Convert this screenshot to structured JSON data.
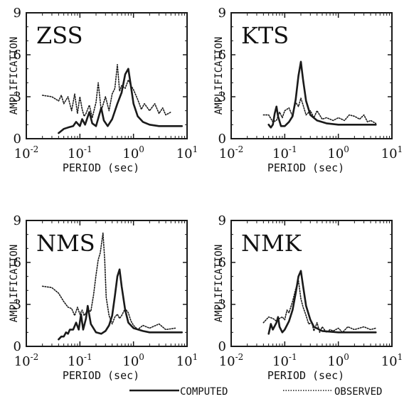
{
  "legend": {
    "computed_label": "COMPUTED",
    "observed_label": "OBSERVED",
    "position": "bottom-right"
  },
  "colors": {
    "ink": "#1a1a1a",
    "background": "#ffffff"
  },
  "chart_data": [
    {
      "type": "line",
      "title": "ZSS",
      "xlabel": "PERIOD (sec)",
      "ylabel": "AMPLIFICATION",
      "xscale": "log",
      "xlim": [
        0.01,
        10
      ],
      "ylim": [
        0,
        9
      ],
      "yticks": [
        0,
        3,
        6,
        9
      ],
      "xticks": [
        0.01,
        0.1,
        1,
        10
      ],
      "series": [
        {
          "name": "COMPUTED",
          "style": "solid",
          "points": [
            [
              0.04,
              0.4
            ],
            [
              0.05,
              0.7
            ],
            [
              0.06,
              0.8
            ],
            [
              0.075,
              0.9
            ],
            [
              0.085,
              1.2
            ],
            [
              0.1,
              0.9
            ],
            [
              0.11,
              1.4
            ],
            [
              0.125,
              1.0
            ],
            [
              0.15,
              1.9
            ],
            [
              0.17,
              1.1
            ],
            [
              0.2,
              0.9
            ],
            [
              0.25,
              2.2
            ],
            [
              0.28,
              1.3
            ],
            [
              0.33,
              0.9
            ],
            [
              0.4,
              1.4
            ],
            [
              0.5,
              2.5
            ],
            [
              0.6,
              3.3
            ],
            [
              0.7,
              4.6
            ],
            [
              0.8,
              5.0
            ],
            [
              0.9,
              3.7
            ],
            [
              1.0,
              2.5
            ],
            [
              1.2,
              1.6
            ],
            [
              1.5,
              1.2
            ],
            [
              2,
              1.0
            ],
            [
              3,
              0.9
            ],
            [
              5,
              0.9
            ],
            [
              8,
              0.9
            ]
          ]
        },
        {
          "name": "OBSERVED",
          "style": "dotted",
          "points": [
            [
              0.02,
              3.1
            ],
            [
              0.03,
              3.0
            ],
            [
              0.04,
              2.7
            ],
            [
              0.045,
              3.1
            ],
            [
              0.05,
              2.5
            ],
            [
              0.06,
              3.0
            ],
            [
              0.07,
              2.0
            ],
            [
              0.08,
              3.2
            ],
            [
              0.09,
              1.8
            ],
            [
              0.1,
              3.0
            ],
            [
              0.11,
              2.1
            ],
            [
              0.12,
              1.6
            ],
            [
              0.13,
              1.8
            ],
            [
              0.15,
              2.4
            ],
            [
              0.17,
              1.5
            ],
            [
              0.2,
              2.6
            ],
            [
              0.22,
              4.0
            ],
            [
              0.25,
              2.0
            ],
            [
              0.3,
              3.0
            ],
            [
              0.35,
              2.0
            ],
            [
              0.4,
              3.2
            ],
            [
              0.45,
              3.6
            ],
            [
              0.5,
              5.3
            ],
            [
              0.55,
              3.4
            ],
            [
              0.6,
              3.8
            ],
            [
              0.7,
              3.6
            ],
            [
              0.8,
              4.2
            ],
            [
              0.9,
              3.8
            ],
            [
              1.0,
              3.5
            ],
            [
              1.2,
              2.8
            ],
            [
              1.4,
              2.1
            ],
            [
              1.6,
              2.5
            ],
            [
              2,
              2.0
            ],
            [
              2.5,
              2.5
            ],
            [
              3,
              1.8
            ],
            [
              3.5,
              2.2
            ],
            [
              4,
              1.7
            ],
            [
              5,
              1.9
            ]
          ]
        }
      ]
    },
    {
      "type": "line",
      "title": "KTS",
      "xlabel": "PERIOD (sec)",
      "ylabel": "AMPLIFICATION",
      "xscale": "log",
      "xlim": [
        0.01,
        10
      ],
      "ylim": [
        0,
        9
      ],
      "yticks": [
        0,
        3,
        6,
        9
      ],
      "xticks": [
        0.01,
        0.1,
        1,
        10
      ],
      "series": [
        {
          "name": "COMPUTED",
          "style": "solid",
          "points": [
            [
              0.05,
              1.0
            ],
            [
              0.055,
              0.8
            ],
            [
              0.06,
              1.0
            ],
            [
              0.065,
              1.8
            ],
            [
              0.07,
              2.3
            ],
            [
              0.075,
              1.6
            ],
            [
              0.085,
              0.9
            ],
            [
              0.1,
              0.9
            ],
            [
              0.12,
              1.2
            ],
            [
              0.14,
              1.6
            ],
            [
              0.16,
              2.8
            ],
            [
              0.18,
              4.5
            ],
            [
              0.2,
              5.5
            ],
            [
              0.22,
              4.2
            ],
            [
              0.25,
              2.7
            ],
            [
              0.3,
              1.7
            ],
            [
              0.4,
              1.3
            ],
            [
              0.6,
              1.1
            ],
            [
              1,
              1.0
            ],
            [
              2,
              1.0
            ],
            [
              4,
              1.0
            ],
            [
              5,
              1.0
            ]
          ]
        },
        {
          "name": "OBSERVED",
          "style": "dotted",
          "points": [
            [
              0.04,
              1.7
            ],
            [
              0.05,
              1.7
            ],
            [
              0.06,
              1.2
            ],
            [
              0.07,
              1.3
            ],
            [
              0.08,
              1.9
            ],
            [
              0.09,
              1.5
            ],
            [
              0.1,
              2.0
            ],
            [
              0.12,
              2.2
            ],
            [
              0.14,
              1.6
            ],
            [
              0.16,
              2.6
            ],
            [
              0.18,
              2.3
            ],
            [
              0.2,
              2.9
            ],
            [
              0.22,
              2.4
            ],
            [
              0.25,
              1.7
            ],
            [
              0.3,
              2.0
            ],
            [
              0.35,
              1.5
            ],
            [
              0.4,
              2.0
            ],
            [
              0.5,
              1.4
            ],
            [
              0.6,
              1.5
            ],
            [
              0.8,
              1.3
            ],
            [
              1.0,
              1.5
            ],
            [
              1.3,
              1.3
            ],
            [
              1.6,
              1.7
            ],
            [
              2,
              1.6
            ],
            [
              2.5,
              1.4
            ],
            [
              3,
              1.7
            ],
            [
              3.5,
              1.2
            ],
            [
              4,
              1.3
            ],
            [
              5,
              1.1
            ]
          ]
        }
      ]
    },
    {
      "type": "line",
      "title": "NMS",
      "xlabel": "PERIOD (sec)",
      "ylabel": "AMPLIFICATION",
      "xscale": "log",
      "xlim": [
        0.01,
        10
      ],
      "ylim": [
        0,
        9
      ],
      "yticks": [
        0,
        3,
        6,
        9
      ],
      "xticks": [
        0.01,
        0.1,
        1,
        10
      ],
      "series": [
        {
          "name": "COMPUTED",
          "style": "solid",
          "points": [
            [
              0.04,
              0.5
            ],
            [
              0.045,
              0.7
            ],
            [
              0.05,
              0.7
            ],
            [
              0.055,
              1.0
            ],
            [
              0.06,
              0.9
            ],
            [
              0.065,
              1.2
            ],
            [
              0.075,
              1.2
            ],
            [
              0.085,
              1.7
            ],
            [
              0.095,
              1.2
            ],
            [
              0.105,
              2.3
            ],
            [
              0.115,
              1.2
            ],
            [
              0.13,
              2.0
            ],
            [
              0.14,
              2.9
            ],
            [
              0.16,
              1.6
            ],
            [
              0.2,
              1.0
            ],
            [
              0.25,
              0.9
            ],
            [
              0.3,
              1.1
            ],
            [
              0.35,
              1.5
            ],
            [
              0.4,
              2.2
            ],
            [
              0.45,
              3.6
            ],
            [
              0.5,
              5.0
            ],
            [
              0.55,
              5.5
            ],
            [
              0.6,
              4.3
            ],
            [
              0.7,
              2.6
            ],
            [
              0.8,
              1.7
            ],
            [
              1,
              1.3
            ],
            [
              1.5,
              1.1
            ],
            [
              2,
              1.0
            ],
            [
              4,
              1.0
            ],
            [
              8,
              1.0
            ]
          ]
        },
        {
          "name": "OBSERVED",
          "style": "dotted",
          "points": [
            [
              0.02,
              4.3
            ],
            [
              0.03,
              4.2
            ],
            [
              0.04,
              3.8
            ],
            [
              0.05,
              3.2
            ],
            [
              0.06,
              2.8
            ],
            [
              0.07,
              2.7
            ],
            [
              0.08,
              2.2
            ],
            [
              0.09,
              2.8
            ],
            [
              0.1,
              2.3
            ],
            [
              0.11,
              2.6
            ],
            [
              0.12,
              2.2
            ],
            [
              0.14,
              2.6
            ],
            [
              0.16,
              2.5
            ],
            [
              0.18,
              3.7
            ],
            [
              0.2,
              5.1
            ],
            [
              0.22,
              6.2
            ],
            [
              0.24,
              6.7
            ],
            [
              0.27,
              8.1
            ],
            [
              0.29,
              6.2
            ],
            [
              0.31,
              3.5
            ],
            [
              0.35,
              2.2
            ],
            [
              0.4,
              1.6
            ],
            [
              0.45,
              2.1
            ],
            [
              0.5,
              2.3
            ],
            [
              0.55,
              2.0
            ],
            [
              0.6,
              2.2
            ],
            [
              0.7,
              2.7
            ],
            [
              0.8,
              2.4
            ],
            [
              0.9,
              1.8
            ],
            [
              1.0,
              1.5
            ],
            [
              1.2,
              1.2
            ],
            [
              1.5,
              1.5
            ],
            [
              2,
              1.3
            ],
            [
              3,
              1.6
            ],
            [
              4,
              1.2
            ],
            [
              6,
              1.3
            ]
          ]
        }
      ]
    },
    {
      "type": "line",
      "title": "NMK",
      "xlabel": "PERIOD (sec)",
      "ylabel": "AMPLIFICATION",
      "xscale": "log",
      "xlim": [
        0.01,
        10
      ],
      "ylim": [
        0,
        9
      ],
      "yticks": [
        0,
        3,
        6,
        9
      ],
      "xticks": [
        0.01,
        0.1,
        1,
        10
      ],
      "series": [
        {
          "name": "COMPUTED",
          "style": "solid",
          "points": [
            [
              0.05,
              0.9
            ],
            [
              0.055,
              1.6
            ],
            [
              0.06,
              1.2
            ],
            [
              0.07,
              1.7
            ],
            [
              0.075,
              2.1
            ],
            [
              0.08,
              1.4
            ],
            [
              0.09,
              1.0
            ],
            [
              0.1,
              1.2
            ],
            [
              0.12,
              1.8
            ],
            [
              0.14,
              2.6
            ],
            [
              0.16,
              3.8
            ],
            [
              0.18,
              5.0
            ],
            [
              0.2,
              5.4
            ],
            [
              0.22,
              4.3
            ],
            [
              0.25,
              2.9
            ],
            [
              0.3,
              1.9
            ],
            [
              0.35,
              1.4
            ],
            [
              0.5,
              1.1
            ],
            [
              1,
              1.0
            ],
            [
              2,
              1.0
            ],
            [
              5,
              1.0
            ]
          ]
        },
        {
          "name": "OBSERVED",
          "style": "dotted",
          "points": [
            [
              0.04,
              1.7
            ],
            [
              0.05,
              2.1
            ],
            [
              0.06,
              2.0
            ],
            [
              0.07,
              1.8
            ],
            [
              0.08,
              2.0
            ],
            [
              0.09,
              2.1
            ],
            [
              0.1,
              1.9
            ],
            [
              0.11,
              2.6
            ],
            [
              0.12,
              2.4
            ],
            [
              0.14,
              3.2
            ],
            [
              0.16,
              4.1
            ],
            [
              0.18,
              4.7
            ],
            [
              0.2,
              3.4
            ],
            [
              0.22,
              2.8
            ],
            [
              0.25,
              2.2
            ],
            [
              0.28,
              1.6
            ],
            [
              0.32,
              1.7
            ],
            [
              0.35,
              1.1
            ],
            [
              0.4,
              1.7
            ],
            [
              0.45,
              1.0
            ],
            [
              0.5,
              1.4
            ],
            [
              0.6,
              1.0
            ],
            [
              0.7,
              1.2
            ],
            [
              0.8,
              1.1
            ],
            [
              1,
              1.3
            ],
            [
              1.2,
              1.0
            ],
            [
              1.5,
              1.4
            ],
            [
              2,
              1.2
            ],
            [
              3,
              1.4
            ],
            [
              4,
              1.2
            ],
            [
              5,
              1.3
            ]
          ]
        }
      ]
    }
  ]
}
